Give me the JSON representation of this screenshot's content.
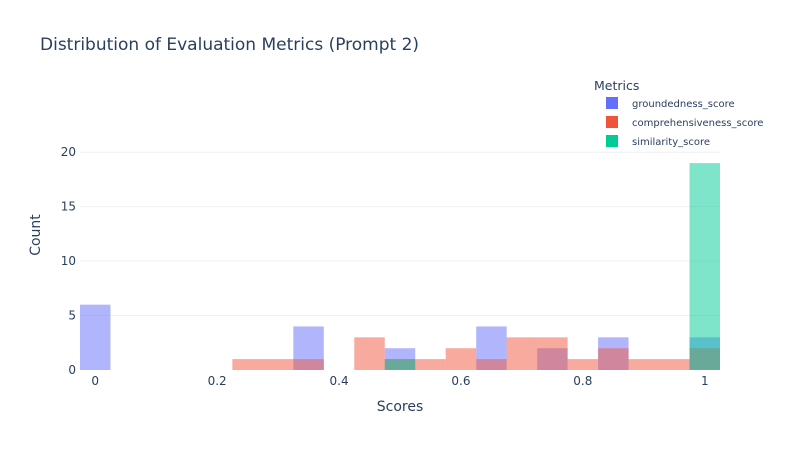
{
  "chart_data": {
    "type": "bar",
    "title": "Distribution of Evaluation Metrics (Prompt 2)",
    "xlabel": "Scores",
    "ylabel": "Count",
    "xlim": [
      -0.025,
      1.025
    ],
    "ylim": [
      0,
      22.5
    ],
    "bin_width": 0.05,
    "x_ticks": [
      {
        "value": 0,
        "label": "0"
      },
      {
        "value": 0.2,
        "label": "0.2"
      },
      {
        "value": 0.4,
        "label": "0.4"
      },
      {
        "value": 0.6,
        "label": "0.6"
      },
      {
        "value": 0.8,
        "label": "0.8"
      },
      {
        "value": 1,
        "label": "1"
      }
    ],
    "y_ticks": [
      {
        "value": 0,
        "label": "0"
      },
      {
        "value": 5,
        "label": "5"
      },
      {
        "value": 10,
        "label": "10"
      },
      {
        "value": 15,
        "label": "15"
      },
      {
        "value": 20,
        "label": "20"
      }
    ],
    "grid": true,
    "legend": {
      "title": "Metrics",
      "placement": "top-right"
    },
    "series": [
      {
        "name": "groundedness_score",
        "color": "#636efa",
        "bins": [
          {
            "x": 0.0,
            "count": 6
          },
          {
            "x": 0.35,
            "count": 4
          },
          {
            "x": 0.5,
            "count": 2
          },
          {
            "x": 0.65,
            "count": 4
          },
          {
            "x": 0.75,
            "count": 2
          },
          {
            "x": 0.85,
            "count": 3
          },
          {
            "x": 1.0,
            "count": 3
          }
        ]
      },
      {
        "name": "comprehensiveness_score",
        "color": "#ef553b",
        "bins": [
          {
            "x": 0.25,
            "count": 1
          },
          {
            "x": 0.3,
            "count": 1
          },
          {
            "x": 0.35,
            "count": 1
          },
          {
            "x": 0.45,
            "count": 3
          },
          {
            "x": 0.5,
            "count": 1
          },
          {
            "x": 0.55,
            "count": 1
          },
          {
            "x": 0.6,
            "count": 2
          },
          {
            "x": 0.65,
            "count": 1
          },
          {
            "x": 0.7,
            "count": 3
          },
          {
            "x": 0.75,
            "count": 3
          },
          {
            "x": 0.8,
            "count": 1
          },
          {
            "x": 0.85,
            "count": 2
          },
          {
            "x": 0.9,
            "count": 1
          },
          {
            "x": 0.95,
            "count": 1
          },
          {
            "x": 1.0,
            "count": 2
          }
        ]
      },
      {
        "name": "similarity_score",
        "color": "#00cc96",
        "bins": [
          {
            "x": 0.5,
            "count": 1
          },
          {
            "x": 1.0,
            "count": 19
          }
        ]
      }
    ]
  }
}
